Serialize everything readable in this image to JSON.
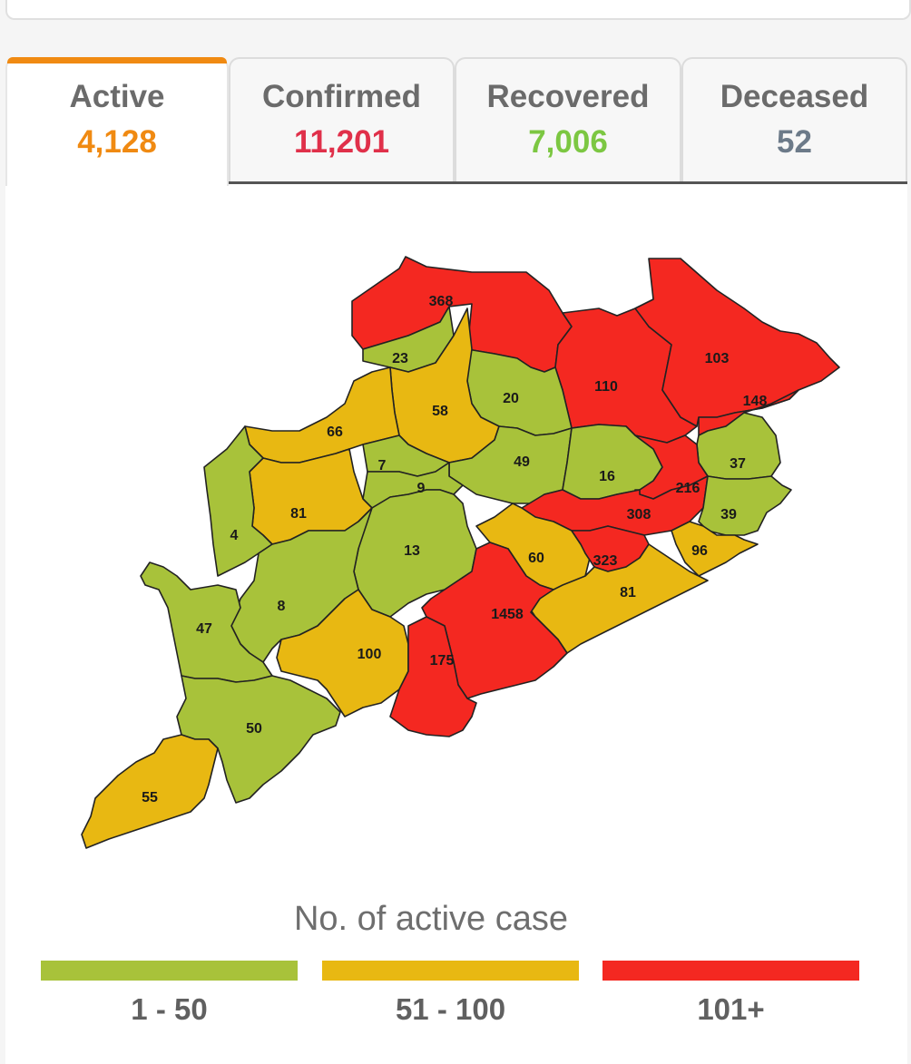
{
  "tabs": [
    {
      "label": "Active",
      "value": "4,128",
      "color": "#f08a12",
      "active": true
    },
    {
      "label": "Confirmed",
      "value": "11,201",
      "color": "#e0304a",
      "active": false
    },
    {
      "label": "Recovered",
      "value": "7,006",
      "color": "#7cc742",
      "active": false
    },
    {
      "label": "Deceased",
      "value": "52",
      "color": "#6c7a89",
      "active": false
    }
  ],
  "map": {
    "colors": {
      "low": "#a8c23a",
      "mid": "#e8b812",
      "high": "#f42821",
      "border": "#222222"
    },
    "districts": [
      {
        "value": "368",
        "level": "high"
      },
      {
        "value": "23",
        "level": "low"
      },
      {
        "value": "110",
        "level": "high"
      },
      {
        "value": "103",
        "level": "high"
      },
      {
        "value": "148",
        "level": "high"
      },
      {
        "value": "20",
        "level": "low"
      },
      {
        "value": "58",
        "level": "mid"
      },
      {
        "value": "66",
        "level": "mid"
      },
      {
        "value": "49",
        "level": "low"
      },
      {
        "value": "16",
        "level": "low"
      },
      {
        "value": "37",
        "level": "low"
      },
      {
        "value": "216",
        "level": "high"
      },
      {
        "value": "7",
        "level": "low"
      },
      {
        "value": "9",
        "level": "low"
      },
      {
        "value": "81",
        "level": "mid"
      },
      {
        "value": "4",
        "level": "low"
      },
      {
        "value": "308",
        "level": "high"
      },
      {
        "value": "39",
        "level": "low"
      },
      {
        "value": "13",
        "level": "low"
      },
      {
        "value": "60",
        "level": "mid"
      },
      {
        "value": "323",
        "level": "high"
      },
      {
        "value": "96",
        "level": "mid"
      },
      {
        "value": "81",
        "level": "mid"
      },
      {
        "value": "8",
        "level": "low"
      },
      {
        "value": "47",
        "level": "low"
      },
      {
        "value": "1458",
        "level": "high"
      },
      {
        "value": "100",
        "level": "mid"
      },
      {
        "value": "175",
        "level": "high"
      },
      {
        "value": "50",
        "level": "low"
      },
      {
        "value": "55",
        "level": "mid"
      }
    ]
  },
  "legend": {
    "title": "No. of active case",
    "items": [
      {
        "label": "1 - 50",
        "color": "#a8c23a"
      },
      {
        "label": "51 - 100",
        "color": "#e8b812"
      },
      {
        "label": "101+",
        "color": "#f42821"
      }
    ]
  }
}
